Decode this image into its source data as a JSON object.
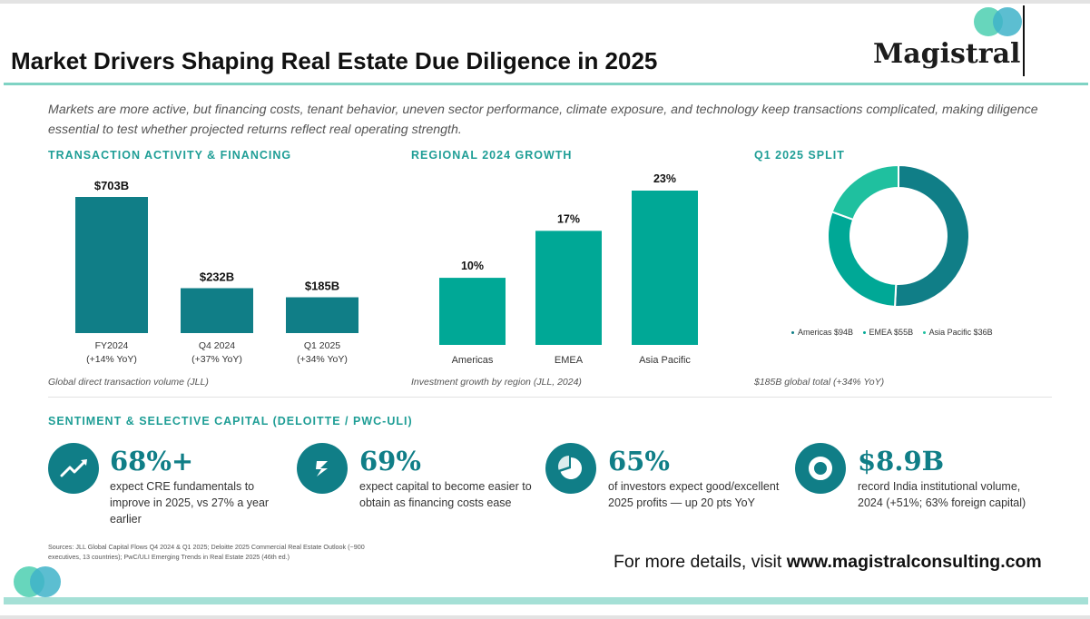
{
  "title": "Market Drivers Shaping Real Estate Due Diligence in 2025",
  "logo": {
    "name": "Magistral"
  },
  "intro": "Markets are more active, but financing costs, tenant behavior, uneven sector performance, climate exposure, and technology keep transactions complicated, making diligence essential to test whether projected returns reflect real operating strength.",
  "sections": {
    "transaction_heading": "TRANSACTION ACTIVITY & FINANCING",
    "transaction_caption": "Global direct transaction volume (JLL)",
    "regional_heading": "REGIONAL 2024 GROWTH",
    "regional_caption": "Investment growth by region (JLL, 2024)",
    "split_heading": "Q1 2025 SPLIT",
    "split_caption": "$185B global total (+34% YoY)",
    "sentiment_heading": "SENTIMENT & SELECTIVE CAPITAL (DELOITTE / PWC-ULI)"
  },
  "colors": {
    "teal_dark": "#107e87",
    "teal_bright": "#00a896",
    "teal_light": "#1fc09f",
    "accent_rule": "#7fd3c4",
    "logo_green": "#57d1b5",
    "logo_blue": "#3fb3c9"
  },
  "chart_data": [
    {
      "type": "bar",
      "categories": [
        "FY2024",
        "Q4 2024",
        "Q1 2025"
      ],
      "category_notes": [
        "(+14% YoY)",
        "(+37% YoY)",
        "(+34% YoY)"
      ],
      "values": [
        703,
        232,
        185
      ],
      "value_labels": [
        "$703B",
        "$232B",
        "$185B"
      ],
      "color": "#107e87"
    },
    {
      "type": "bar",
      "categories": [
        "Americas",
        "EMEA",
        "Asia Pacific"
      ],
      "values": [
        10,
        17,
        23
      ],
      "value_labels": [
        "10%",
        "17%",
        "23%"
      ],
      "color": "#00a896"
    },
    {
      "type": "pie",
      "labels": [
        "Americas $94B",
        "EMEA $55B",
        "Asia Pacific $36B"
      ],
      "values": [
        94,
        55,
        36
      ],
      "colors": [
        "#107e87",
        "#00a896",
        "#1fc09f"
      ],
      "legend": "bottom"
    }
  ],
  "stats": [
    {
      "icon": "trend-up-icon",
      "value": "68%+",
      "desc": "expect CRE fundamentals to improve in 2025, vs 27% a year earlier"
    },
    {
      "icon": "capital-icon",
      "value": "69%",
      "desc": "expect capital to become easier to obtain as financing costs ease"
    },
    {
      "icon": "pie-icon",
      "value": "65%",
      "desc": "of investors expect good/excellent 2025 profits — up 20 pts YoY"
    },
    {
      "icon": "ring-icon",
      "value": "$8.9B",
      "desc": "record India institutional volume, 2024 (+51%; 63% foreign capital)"
    }
  ],
  "sources": "Sources: JLL Global Capital Flows Q4 2024 & Q1 2025; Deloitte 2025 Commercial Real Estate Outlook (~900 executives, 13 countries); PwC/ULI Emerging Trends in Real Estate 2025 (46th ed.)",
  "cta": {
    "prefix": "For more details, visit ",
    "link": "www.magistralconsulting.com"
  }
}
